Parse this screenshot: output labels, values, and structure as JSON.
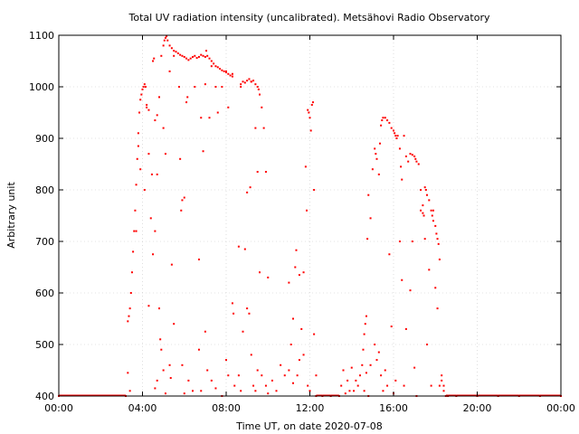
{
  "chart_data": {
    "type": "scatter",
    "title": "Total UV radiation intensity (uncalibrated). Metsähovi Radio Observatory",
    "xlabel": "Time UT, on date 2020-07-08",
    "ylabel": "Arbitrary unit",
    "xlim": [
      0,
      24
    ],
    "ylim": [
      400,
      1100
    ],
    "xticks": [
      0,
      4,
      8,
      12,
      16,
      20,
      24
    ],
    "xtick_labels": [
      "00:00",
      "04:00",
      "08:00",
      "12:00",
      "16:00",
      "20:00",
      "00:00"
    ],
    "yticks": [
      400,
      500,
      600,
      700,
      800,
      900,
      1000,
      1100
    ],
    "ytick_labels": [
      "400",
      "500",
      "600",
      "700",
      "800",
      "900",
      "1000",
      "1100"
    ],
    "grid": true,
    "series": [
      {
        "color": "#ff0000",
        "points": [
          [
            0.0,
            400
          ],
          [
            3.2,
            400
          ],
          [
            3.3,
            545
          ],
          [
            3.35,
            555
          ],
          [
            3.4,
            570
          ],
          [
            3.45,
            600
          ],
          [
            3.5,
            640
          ],
          [
            3.55,
            680
          ],
          [
            3.6,
            720
          ],
          [
            3.65,
            760
          ],
          [
            3.7,
            810
          ],
          [
            3.75,
            860
          ],
          [
            3.8,
            910
          ],
          [
            3.85,
            950
          ],
          [
            3.9,
            975
          ],
          [
            3.95,
            985
          ],
          [
            4.0,
            995
          ],
          [
            4.05,
            1000
          ],
          [
            4.1,
            1005
          ],
          [
            4.15,
            1000
          ],
          [
            4.2,
            965
          ],
          [
            4.3,
            955
          ],
          [
            4.4,
            745
          ],
          [
            4.5,
            1050
          ],
          [
            4.55,
            1055
          ],
          [
            4.6,
            935
          ],
          [
            4.7,
            945
          ],
          [
            4.8,
            980
          ],
          [
            4.9,
            1060
          ],
          [
            5.0,
            1080
          ],
          [
            5.05,
            1090
          ],
          [
            5.1,
            1095
          ],
          [
            5.15,
            1098
          ],
          [
            5.2,
            1090
          ],
          [
            5.3,
            1080
          ],
          [
            5.4,
            1075
          ],
          [
            5.5,
            1070
          ],
          [
            5.6,
            1068
          ],
          [
            5.7,
            1065
          ],
          [
            5.8,
            1062
          ],
          [
            5.9,
            1060
          ],
          [
            6.0,
            1058
          ],
          [
            6.1,
            1055
          ],
          [
            6.2,
            1052
          ],
          [
            6.3,
            1055
          ],
          [
            6.4,
            1058
          ],
          [
            6.5,
            1060
          ],
          [
            6.6,
            1056
          ],
          [
            6.7,
            1058
          ],
          [
            6.8,
            1062
          ],
          [
            6.9,
            1060
          ],
          [
            7.0,
            1058
          ],
          [
            7.05,
            1070
          ],
          [
            7.1,
            1060
          ],
          [
            7.2,
            1055
          ],
          [
            7.3,
            1050
          ],
          [
            7.4,
            1045
          ],
          [
            7.5,
            1040
          ],
          [
            7.6,
            1038
          ],
          [
            7.7,
            1035
          ],
          [
            7.8,
            1032
          ],
          [
            7.9,
            1030
          ],
          [
            8.0,
            1028
          ],
          [
            8.1,
            1025
          ],
          [
            8.2,
            1022
          ],
          [
            8.3,
            1025
          ],
          [
            8.7,
            1005
          ],
          [
            8.8,
            1010
          ],
          [
            8.9,
            1008
          ],
          [
            9.0,
            1012
          ],
          [
            9.1,
            1015
          ],
          [
            9.2,
            1010
          ],
          [
            9.3,
            1012
          ],
          [
            9.4,
            1005
          ],
          [
            9.5,
            1000
          ],
          [
            9.55,
            995
          ],
          [
            9.6,
            985
          ],
          [
            3.3,
            445
          ],
          [
            3.4,
            410
          ],
          [
            3.7,
            720
          ],
          [
            3.8,
            885
          ],
          [
            3.9,
            840
          ],
          [
            4.1,
            800
          ],
          [
            4.2,
            960
          ],
          [
            4.3,
            870
          ],
          [
            4.45,
            830
          ],
          [
            4.6,
            720
          ],
          [
            4.7,
            830
          ],
          [
            5.0,
            920
          ],
          [
            5.1,
            870
          ],
          [
            5.3,
            1030
          ],
          [
            5.5,
            1060
          ],
          [
            5.75,
            1000
          ],
          [
            5.8,
            860
          ],
          [
            5.85,
            760
          ],
          [
            5.9,
            780
          ],
          [
            6.0,
            785
          ],
          [
            6.1,
            970
          ],
          [
            6.15,
            980
          ],
          [
            6.5,
            1000
          ],
          [
            6.7,
            665
          ],
          [
            6.8,
            940
          ],
          [
            6.9,
            875
          ],
          [
            7.0,
            1005
          ],
          [
            7.2,
            940
          ],
          [
            7.3,
            1040
          ],
          [
            7.5,
            1000
          ],
          [
            7.6,
            950
          ],
          [
            7.8,
            1000
          ],
          [
            8.0,
            1030
          ],
          [
            8.1,
            960
          ],
          [
            8.3,
            1020
          ],
          [
            8.6,
            690
          ],
          [
            8.7,
            1000
          ],
          [
            8.9,
            685
          ],
          [
            9.0,
            795
          ],
          [
            9.15,
            805
          ],
          [
            9.2,
            1010
          ],
          [
            9.4,
            920
          ],
          [
            9.5,
            835
          ],
          [
            9.6,
            640
          ],
          [
            9.7,
            960
          ],
          [
            9.8,
            920
          ],
          [
            9.9,
            835
          ],
          [
            10.0,
            630
          ],
          [
            11.0,
            620
          ],
          [
            11.1,
            500
          ],
          [
            11.2,
            550
          ],
          [
            11.3,
            650
          ],
          [
            11.35,
            683
          ],
          [
            11.5,
            635
          ],
          [
            11.6,
            530
          ],
          [
            11.7,
            640
          ],
          [
            11.8,
            845
          ],
          [
            11.85,
            760
          ],
          [
            11.9,
            955
          ],
          [
            11.95,
            950
          ],
          [
            12.0,
            940
          ],
          [
            12.05,
            915
          ],
          [
            12.1,
            965
          ],
          [
            12.15,
            970
          ],
          [
            12.2,
            800
          ],
          [
            4.3,
            575
          ],
          [
            4.5,
            675
          ],
          [
            4.6,
            415
          ],
          [
            4.7,
            430
          ],
          [
            4.8,
            570
          ],
          [
            4.85,
            510
          ],
          [
            4.9,
            490
          ],
          [
            5.0,
            450
          ],
          [
            5.1,
            405
          ],
          [
            5.3,
            460
          ],
          [
            5.35,
            435
          ],
          [
            5.4,
            655
          ],
          [
            5.5,
            540
          ],
          [
            5.9,
            460
          ],
          [
            6.0,
            405
          ],
          [
            6.2,
            430
          ],
          [
            6.4,
            410
          ],
          [
            6.7,
            490
          ],
          [
            6.8,
            410
          ],
          [
            7.0,
            525
          ],
          [
            7.1,
            450
          ],
          [
            7.3,
            430
          ],
          [
            7.5,
            415
          ],
          [
            7.8,
            400
          ],
          [
            8.0,
            470
          ],
          [
            8.1,
            440
          ],
          [
            8.3,
            580
          ],
          [
            8.35,
            560
          ],
          [
            8.4,
            420
          ],
          [
            8.6,
            440
          ],
          [
            8.7,
            410
          ],
          [
            8.8,
            525
          ],
          [
            9.0,
            570
          ],
          [
            9.1,
            560
          ],
          [
            9.2,
            480
          ],
          [
            9.3,
            420
          ],
          [
            9.4,
            410
          ],
          [
            9.5,
            450
          ],
          [
            9.7,
            440
          ],
          [
            9.9,
            420
          ],
          [
            10.0,
            405
          ],
          [
            10.2,
            430
          ],
          [
            10.4,
            410
          ],
          [
            10.6,
            460
          ],
          [
            10.8,
            440
          ],
          [
            11.0,
            450
          ],
          [
            11.2,
            425
          ],
          [
            11.4,
            440
          ],
          [
            11.5,
            470
          ],
          [
            11.7,
            480
          ],
          [
            11.9,
            420
          ],
          [
            12.0,
            410
          ],
          [
            12.2,
            520
          ],
          [
            12.3,
            440
          ],
          [
            12.3,
            400
          ],
          [
            12.6,
            400
          ],
          [
            13.0,
            400
          ],
          [
            13.4,
            400
          ],
          [
            13.5,
            420
          ],
          [
            13.6,
            450
          ],
          [
            13.7,
            405
          ],
          [
            13.8,
            430
          ],
          [
            13.9,
            410
          ],
          [
            14.0,
            455
          ],
          [
            14.1,
            410
          ],
          [
            14.2,
            430
          ],
          [
            14.3,
            420
          ],
          [
            14.4,
            440
          ],
          [
            14.5,
            460
          ],
          [
            14.55,
            490
          ],
          [
            14.6,
            520
          ],
          [
            14.65,
            540
          ],
          [
            14.7,
            555
          ],
          [
            14.75,
            705
          ],
          [
            14.8,
            790
          ],
          [
            14.9,
            745
          ],
          [
            15.0,
            840
          ],
          [
            15.1,
            880
          ],
          [
            15.15,
            870
          ],
          [
            15.2,
            860
          ],
          [
            15.3,
            830
          ],
          [
            15.35,
            890
          ],
          [
            15.4,
            925
          ],
          [
            15.45,
            935
          ],
          [
            15.5,
            940
          ],
          [
            15.6,
            940
          ],
          [
            15.7,
            935
          ],
          [
            15.8,
            930
          ],
          [
            15.9,
            920
          ],
          [
            16.0,
            915
          ],
          [
            16.05,
            910
          ],
          [
            16.1,
            905
          ],
          [
            16.15,
            900
          ],
          [
            16.2,
            905
          ],
          [
            16.3,
            880
          ],
          [
            16.35,
            845
          ],
          [
            16.4,
            820
          ],
          [
            16.5,
            905
          ],
          [
            16.6,
            865
          ],
          [
            16.7,
            855
          ],
          [
            16.8,
            870
          ],
          [
            16.9,
            868
          ],
          [
            17.0,
            865
          ],
          [
            17.05,
            860
          ],
          [
            17.1,
            855
          ],
          [
            17.2,
            850
          ],
          [
            17.3,
            800
          ],
          [
            17.4,
            770
          ],
          [
            17.45,
            750
          ],
          [
            17.5,
            805
          ],
          [
            17.55,
            800
          ],
          [
            17.6,
            790
          ],
          [
            17.7,
            780
          ],
          [
            17.8,
            760
          ],
          [
            17.85,
            750
          ],
          [
            17.9,
            740
          ],
          [
            18.0,
            730
          ],
          [
            18.05,
            715
          ],
          [
            18.1,
            705
          ],
          [
            18.15,
            695
          ],
          [
            18.2,
            665
          ],
          [
            18.3,
            440
          ],
          [
            18.4,
            420
          ],
          [
            18.5,
            400
          ],
          [
            14.6,
            410
          ],
          [
            14.7,
            445
          ],
          [
            14.8,
            400
          ],
          [
            14.9,
            460
          ],
          [
            15.1,
            500
          ],
          [
            15.2,
            470
          ],
          [
            15.3,
            485
          ],
          [
            15.4,
            440
          ],
          [
            15.5,
            410
          ],
          [
            15.6,
            450
          ],
          [
            15.7,
            420
          ],
          [
            15.8,
            675
          ],
          [
            15.9,
            535
          ],
          [
            16.0,
            405
          ],
          [
            16.1,
            430
          ],
          [
            16.3,
            700
          ],
          [
            16.4,
            625
          ],
          [
            16.5,
            420
          ],
          [
            16.6,
            530
          ],
          [
            16.8,
            605
          ],
          [
            16.9,
            700
          ],
          [
            17.0,
            455
          ],
          [
            17.1,
            400
          ],
          [
            17.3,
            760
          ],
          [
            17.4,
            755
          ],
          [
            17.5,
            705
          ],
          [
            17.6,
            500
          ],
          [
            17.7,
            645
          ],
          [
            17.8,
            420
          ],
          [
            17.9,
            760
          ],
          [
            18.0,
            610
          ],
          [
            18.1,
            570
          ],
          [
            18.2,
            420
          ],
          [
            18.3,
            430
          ],
          [
            18.4,
            410
          ],
          [
            18.6,
            400
          ],
          [
            19.0,
            400
          ],
          [
            20.0,
            400
          ],
          [
            21.0,
            400
          ],
          [
            22.0,
            400
          ],
          [
            23.0,
            400
          ],
          [
            24.0,
            400
          ]
        ]
      }
    ]
  }
}
